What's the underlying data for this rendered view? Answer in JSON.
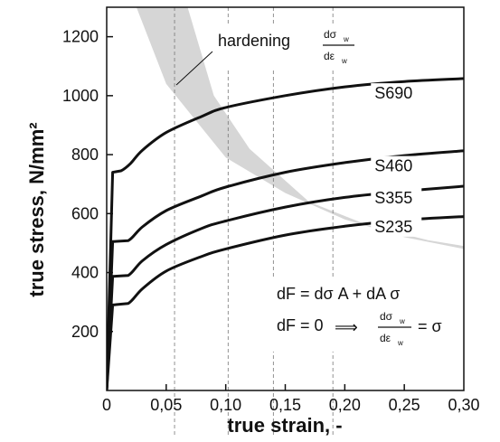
{
  "chart_data": {
    "type": "line",
    "xlabel": "true strain, -",
    "ylabel": "true stress, N/mm²",
    "xlim": [
      0,
      0.3
    ],
    "ylim": [
      0,
      1300
    ],
    "x_ticks": [
      "0",
      "0,05",
      "0,10",
      "0,15",
      "0,20",
      "0,25",
      "0,30"
    ],
    "x_tick_values": [
      0,
      0.05,
      0.1,
      0.15,
      0.2,
      0.25,
      0.3
    ],
    "y_ticks": [
      "200",
      "400",
      "600",
      "800",
      "1000",
      "1200"
    ],
    "y_tick_values": [
      200,
      400,
      600,
      800,
      1000,
      1200
    ],
    "vertical_dashed_lines": [
      0.057,
      0.102,
      0.14,
      0.19
    ],
    "series": [
      {
        "name": "S690",
        "points": [
          [
            0,
            0
          ],
          [
            0.005,
            740
          ],
          [
            0.012,
            745
          ],
          [
            0.02,
            770
          ],
          [
            0.03,
            815
          ],
          [
            0.05,
            875
          ],
          [
            0.08,
            930
          ],
          [
            0.1,
            960
          ],
          [
            0.15,
            1000
          ],
          [
            0.2,
            1030
          ],
          [
            0.25,
            1048
          ],
          [
            0.3,
            1058
          ]
        ]
      },
      {
        "name": "S460",
        "points": [
          [
            0,
            0
          ],
          [
            0.005,
            505
          ],
          [
            0.018,
            508
          ],
          [
            0.03,
            555
          ],
          [
            0.05,
            610
          ],
          [
            0.08,
            660
          ],
          [
            0.1,
            690
          ],
          [
            0.15,
            740
          ],
          [
            0.2,
            773
          ],
          [
            0.25,
            797
          ],
          [
            0.3,
            813
          ]
        ]
      },
      {
        "name": "S355",
        "points": [
          [
            0,
            0
          ],
          [
            0.005,
            387
          ],
          [
            0.018,
            390
          ],
          [
            0.03,
            440
          ],
          [
            0.05,
            495
          ],
          [
            0.08,
            550
          ],
          [
            0.1,
            575
          ],
          [
            0.15,
            622
          ],
          [
            0.2,
            655
          ],
          [
            0.25,
            676
          ],
          [
            0.3,
            693
          ]
        ]
      },
      {
        "name": "S235",
        "points": [
          [
            0,
            0
          ],
          [
            0.005,
            290
          ],
          [
            0.018,
            295
          ],
          [
            0.03,
            345
          ],
          [
            0.05,
            405
          ],
          [
            0.08,
            455
          ],
          [
            0.1,
            480
          ],
          [
            0.15,
            527
          ],
          [
            0.2,
            557
          ],
          [
            0.25,
            578
          ],
          [
            0.3,
            590
          ]
        ]
      }
    ],
    "hardening_band": {
      "label": "hardening",
      "upper_edge": [
        [
          0.025,
          1300
        ],
        [
          0.05,
          1040
        ],
        [
          0.1,
          790
        ],
        [
          0.15,
          670
        ],
        [
          0.2,
          580
        ],
        [
          0.25,
          520
        ],
        [
          0.3,
          480
        ]
      ],
      "lower_edge": [
        [
          0.068,
          1300
        ],
        [
          0.09,
          1000
        ],
        [
          0.12,
          820
        ],
        [
          0.17,
          640
        ],
        [
          0.22,
          560
        ],
        [
          0.27,
          510
        ],
        [
          0.3,
          490
        ]
      ]
    },
    "annotations": {
      "hardening": {
        "text": "hardening",
        "num": "dσ",
        "num_sub": "w",
        "den": "dε",
        "den_sub": "w"
      },
      "eq1": {
        "text": "dF = dσ A + dA σ"
      },
      "eq2": {
        "left": "dF = 0",
        "arrow": "⟹",
        "num": "dσ",
        "num_sub": "w",
        "den": "dε",
        "den_sub": "w",
        "right": "= σ"
      }
    }
  }
}
